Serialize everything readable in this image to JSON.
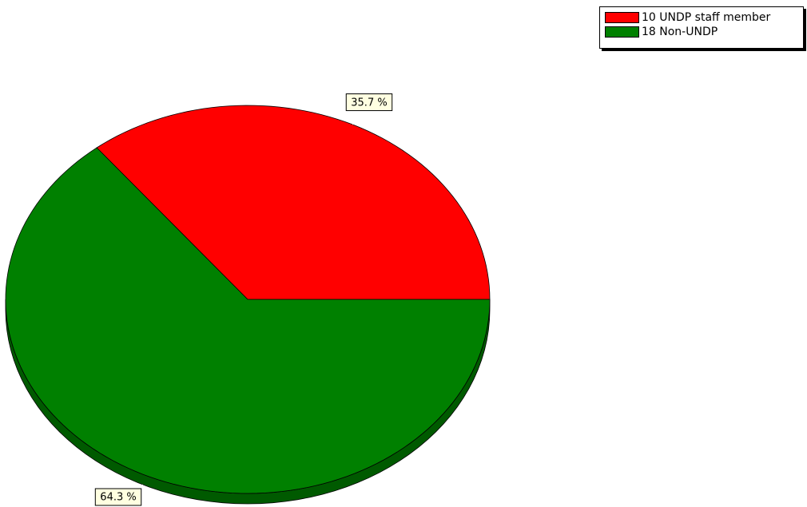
{
  "chart_data": {
    "type": "pie",
    "title": "",
    "legend_position": "top-right",
    "three_d": true,
    "slices": [
      {
        "legend_label": "10 UNDP staff member",
        "value": 10,
        "percent_label": "35.7 %",
        "color": "#ff0000",
        "side_color": "#c80000"
      },
      {
        "legend_label": "18 Non-UNDP",
        "value": 18,
        "percent_label": "64.3 %",
        "color": "#008000",
        "side_color": "#005a00"
      }
    ],
    "label_box_fill": "#ffffe1"
  }
}
